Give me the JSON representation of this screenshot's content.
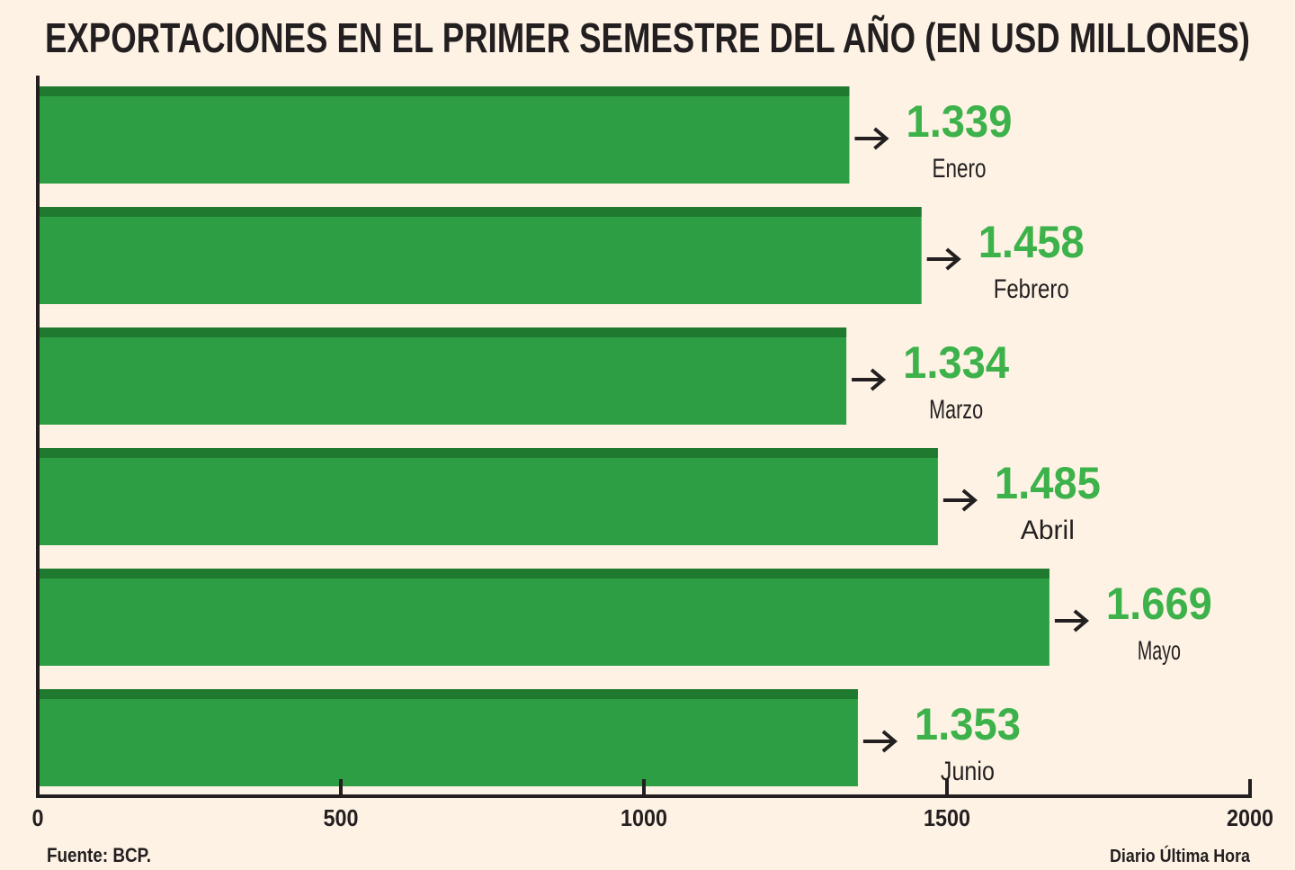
{
  "chart_data": {
    "type": "bar",
    "orientation": "horizontal",
    "title": "EXPORTACIONES EN EL PRIMER SEMESTRE DEL AÑO (EN USD MILLONES)",
    "categories": [
      "Enero",
      "Febrero",
      "Marzo",
      "Abril",
      "Mayo",
      "Junio"
    ],
    "values": [
      1339,
      1458,
      1334,
      1485,
      1669,
      1353
    ],
    "value_labels": [
      "1.339",
      "1.458",
      "1.334",
      "1.485",
      "1.669",
      "1.353"
    ],
    "xlim": [
      0,
      2000
    ],
    "xticks": [
      0,
      500,
      1000,
      1500,
      2000
    ],
    "xtick_labels": [
      "0",
      "500",
      "1000",
      "1500",
      "2000"
    ],
    "grid": false,
    "legend": "none",
    "colors": {
      "bar": "#2e9e44",
      "bar_top": "#1f7a30",
      "value_text": "#3db24b",
      "background": "#fdf2e4",
      "text": "#231f20"
    }
  },
  "footer": {
    "source": "Fuente: BCP.",
    "credit": "Diario Última Hora"
  }
}
